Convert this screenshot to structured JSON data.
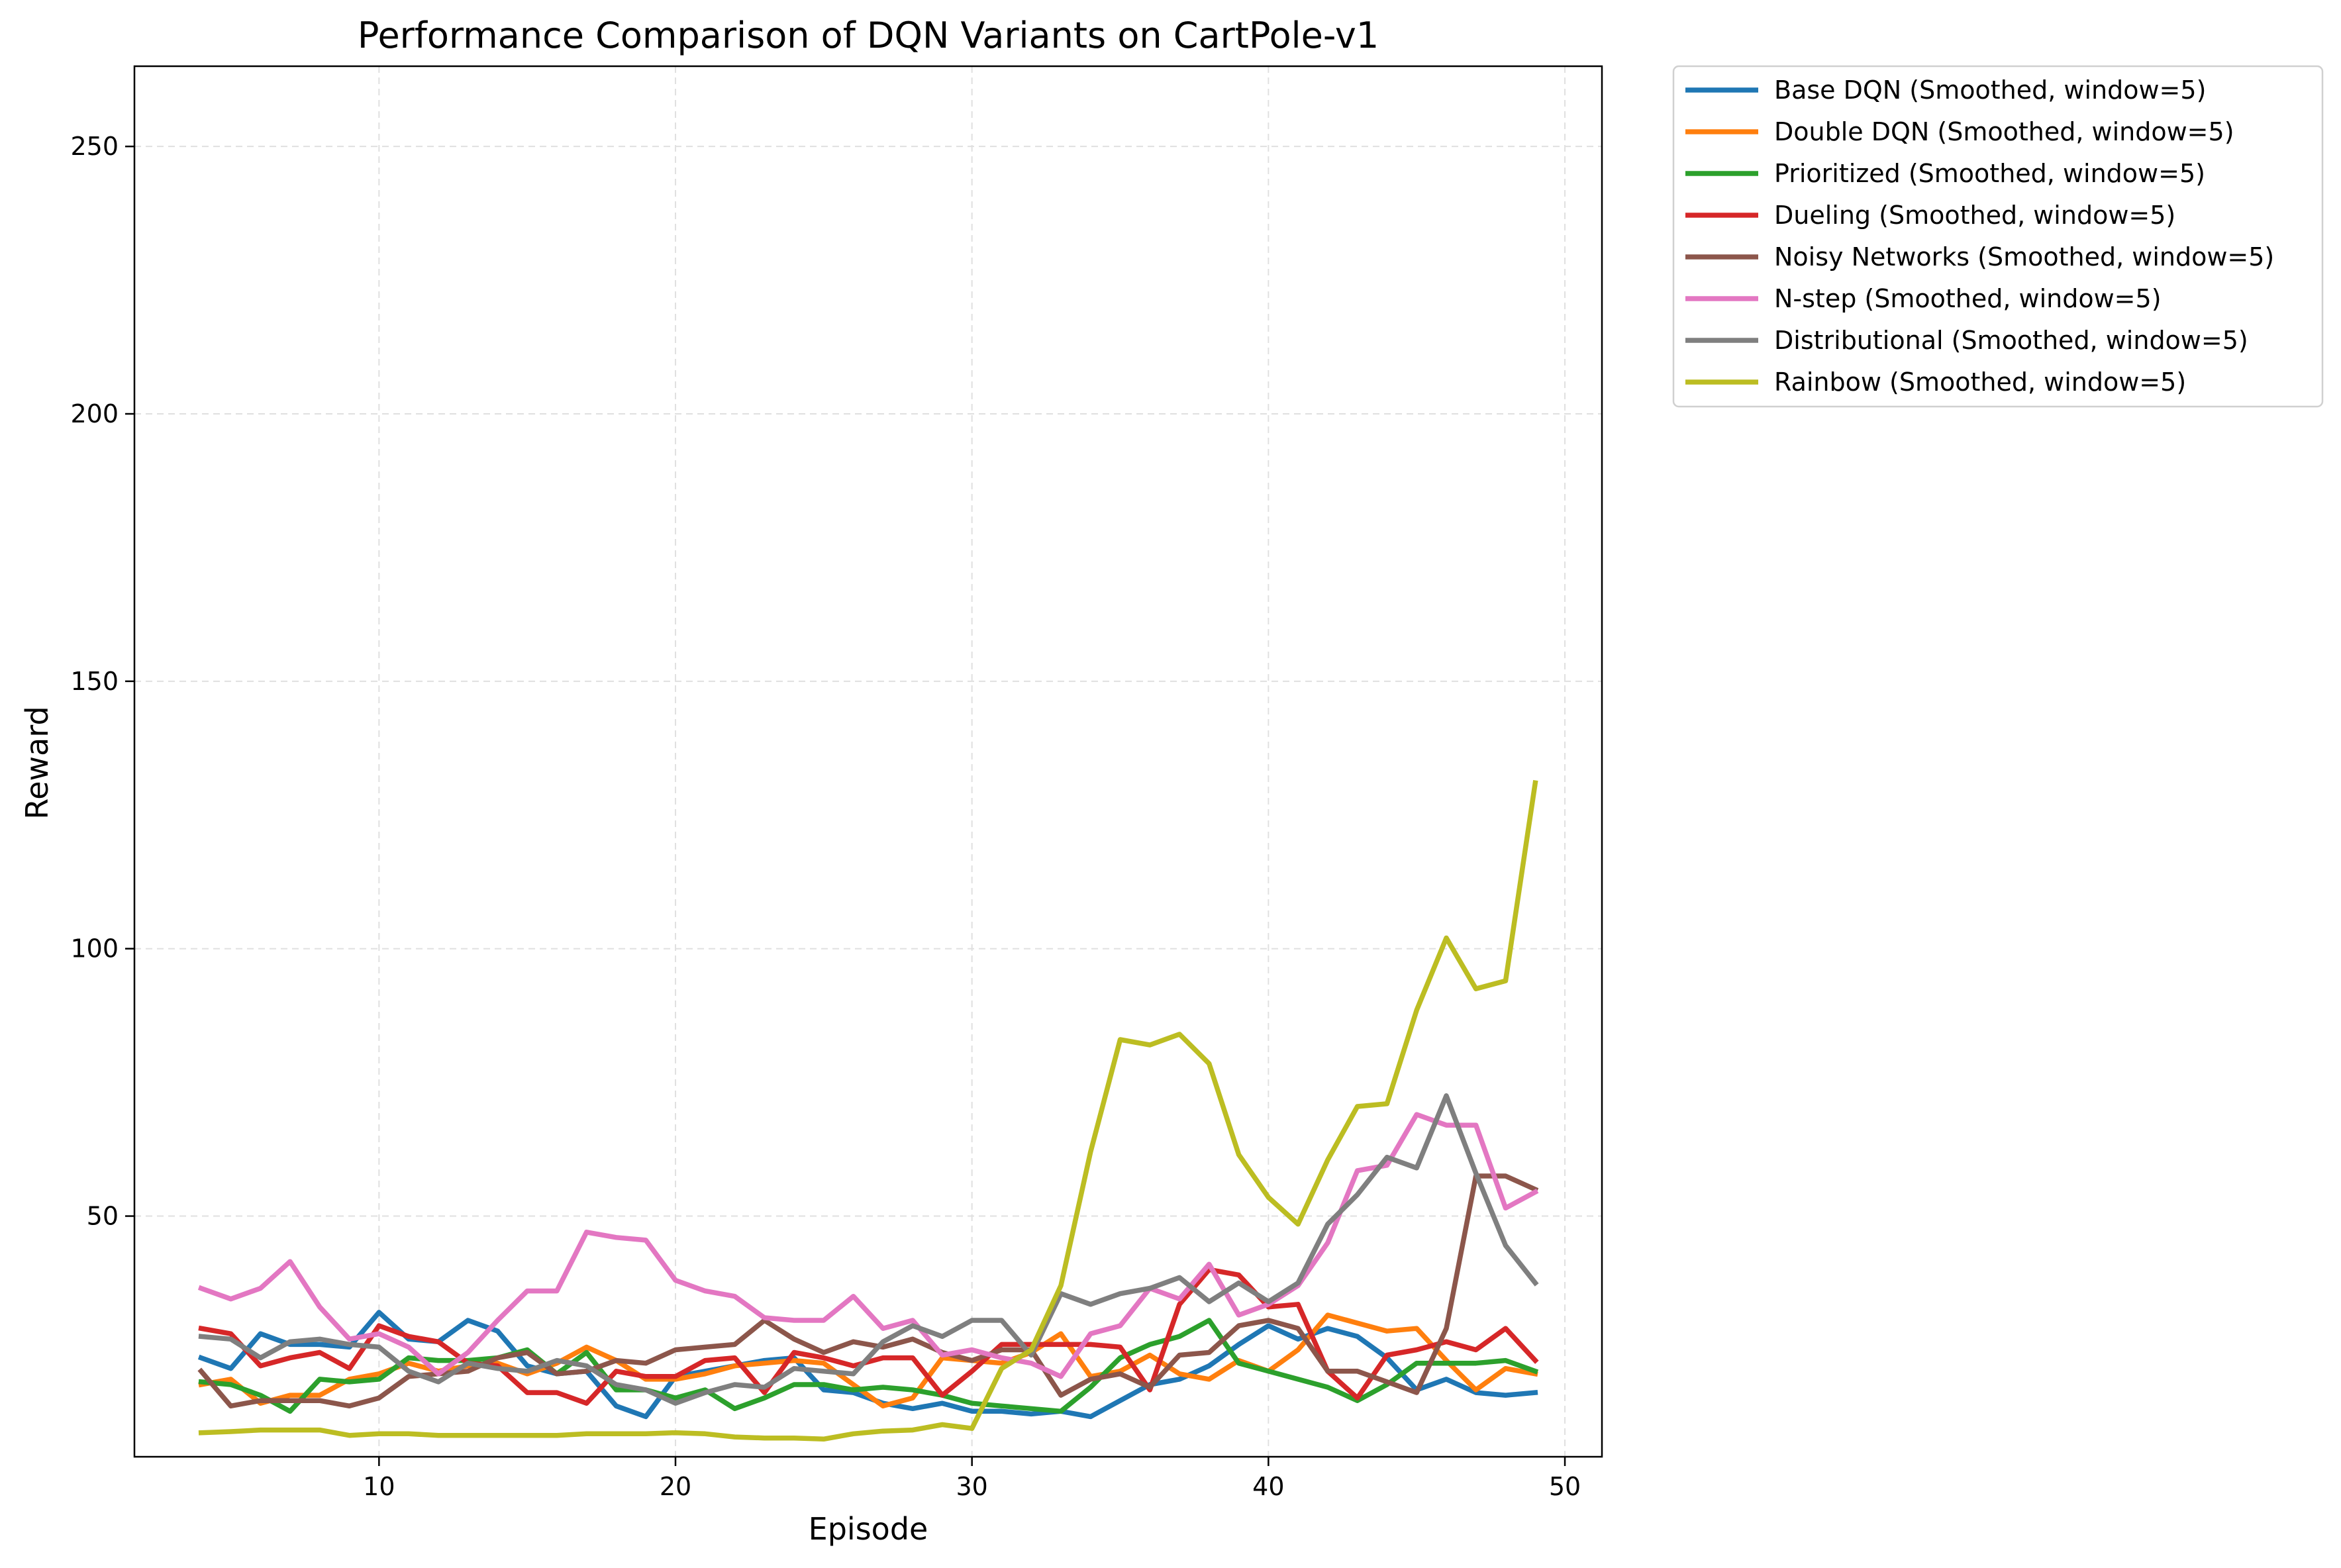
{
  "chart_data": {
    "type": "line",
    "title": "Performance Comparison of DQN Variants on CartPole-v1",
    "xlabel": "Episode",
    "ylabel": "Reward",
    "xlim": [
      1.75,
      51.25
    ],
    "ylim": [
      5,
      265
    ],
    "xticks": [
      10,
      20,
      30,
      40,
      50
    ],
    "yticks": [
      50,
      100,
      150,
      200,
      250
    ],
    "grid": true,
    "legend_position": "outside-top-right",
    "x": [
      4,
      5,
      6,
      7,
      8,
      9,
      10,
      11,
      12,
      13,
      14,
      15,
      16,
      17,
      18,
      19,
      20,
      21,
      22,
      23,
      24,
      25,
      26,
      27,
      28,
      29,
      30,
      31,
      32,
      33,
      34,
      35,
      36,
      37,
      38,
      39,
      40,
      41,
      42,
      43,
      44,
      45,
      46,
      47,
      48,
      49
    ],
    "series": [
      {
        "name": "Base DQN (Smoothed, window=5)",
        "color": "#1f77b4",
        "values": [
          23.5,
          21.5,
          28,
          26,
          26,
          25.5,
          32,
          27,
          26.5,
          30.5,
          28.5,
          22,
          20.5,
          21,
          14.5,
          12.5,
          20,
          21,
          22,
          23,
          23.5,
          17.5,
          17,
          15,
          14,
          15,
          13.5,
          13.5,
          13,
          13.5,
          12.5,
          15.5,
          18.5,
          19.5,
          22,
          26,
          29.5,
          27,
          29,
          27.5,
          23.5,
          17.5,
          19.5,
          17,
          16.5,
          17
        ]
      },
      {
        "name": "Double DQN (Smoothed, window=5)",
        "color": "#ff7f0e",
        "values": [
          18.5,
          19.5,
          15,
          16.5,
          16.5,
          19.5,
          20.5,
          22.5,
          21,
          22,
          22.5,
          20.5,
          22.5,
          25.5,
          23,
          19.5,
          19.5,
          20.5,
          22,
          22.5,
          23,
          22.5,
          18.5,
          14.5,
          16,
          23.5,
          23,
          22.5,
          24.5,
          28,
          20,
          21,
          24,
          20.5,
          19.5,
          23,
          21,
          25,
          31.5,
          30,
          28.5,
          29,
          23,
          17.5,
          21.5,
          20.5
        ]
      },
      {
        "name": "Prioritized (Smoothed, window=5)",
        "color": "#2ca02c",
        "values": [
          19,
          18.5,
          16.5,
          13.5,
          19.5,
          19,
          19.5,
          23.5,
          23,
          23,
          23.5,
          25,
          20.5,
          24.5,
          17.5,
          17.5,
          16,
          17.5,
          14,
          16,
          18.5,
          18.5,
          17.5,
          18,
          17.5,
          16.5,
          15,
          14.5,
          14,
          13.5,
          18,
          23.5,
          26,
          27.5,
          30.5,
          22.5,
          21,
          19.5,
          18,
          15.5,
          18.5,
          22.5,
          22.5,
          22.5,
          23,
          21
        ]
      },
      {
        "name": "Dueling (Smoothed, window=5)",
        "color": "#d62728",
        "values": [
          29,
          28,
          22,
          23.5,
          24.5,
          21.5,
          29.5,
          27.5,
          26.5,
          22.5,
          22,
          17,
          17,
          15,
          21,
          20,
          20,
          23,
          23.5,
          17,
          24.5,
          23.5,
          22,
          23.5,
          23.5,
          16.5,
          21,
          26,
          26,
          26,
          26,
          25.5,
          17.5,
          33.5,
          40,
          39,
          33,
          33.5,
          21,
          16,
          24,
          25,
          26.5,
          25,
          29,
          23
        ]
      },
      {
        "name": "Noisy Networks (Smoothed, window=5)",
        "color": "#8c564b",
        "values": [
          21,
          14.5,
          15.5,
          15.5,
          15.5,
          14.5,
          16,
          20,
          20.5,
          21,
          23.5,
          24.5,
          20.5,
          21,
          23,
          22.5,
          25,
          25.5,
          26,
          30.5,
          27,
          24.5,
          26.5,
          25.5,
          27,
          24.5,
          23,
          25,
          25,
          16.5,
          19.5,
          20.5,
          18,
          24,
          24.5,
          29.5,
          30.5,
          29,
          21,
          21,
          19,
          17,
          29,
          57.5,
          57.5,
          55
        ]
      },
      {
        "name": "N-step (Smoothed, window=5)",
        "color": "#e377c2",
        "values": [
          36.5,
          34.5,
          36.5,
          41.5,
          33,
          27,
          28,
          25.5,
          20.5,
          24.5,
          30.5,
          36,
          36,
          47,
          46,
          45.5,
          38,
          36,
          35,
          31,
          30.5,
          30.5,
          35,
          29,
          30.5,
          24,
          25,
          23.5,
          22.5,
          20,
          28,
          29.5,
          36.5,
          34.5,
          41,
          31.5,
          33.5,
          37,
          45,
          58.5,
          59.5,
          69,
          67,
          67,
          51.5,
          54.5
        ]
      },
      {
        "name": "Distributional (Smoothed, window=5)",
        "color": "#7f7f7f",
        "values": [
          27.5,
          27,
          23.5,
          26.5,
          27,
          26,
          25.5,
          21,
          19,
          22.5,
          21.5,
          21,
          23,
          22,
          18.5,
          17.5,
          15,
          17,
          18.5,
          18,
          21.5,
          21,
          20.5,
          26.5,
          29.5,
          27.5,
          30.5,
          30.5,
          24,
          35.5,
          33.5,
          35.5,
          36.5,
          38.5,
          34,
          37.5,
          34,
          37.5,
          48.5,
          54,
          61,
          59,
          72.5,
          58,
          44.5,
          37.5
        ]
      },
      {
        "name": "Rainbow (Smoothed, window=5)",
        "color": "#bcbd22",
        "values": [
          9.5,
          9.7,
          10,
          10,
          10,
          9,
          9.3,
          9.3,
          9,
          9,
          9,
          9,
          9,
          9.3,
          9.3,
          9.3,
          9.5,
          9.3,
          8.7,
          8.5,
          8.5,
          8.3,
          9.3,
          9.8,
          10,
          11,
          10.3,
          21.5,
          25,
          37,
          62,
          83,
          82,
          84,
          78.5,
          61.5,
          53.5,
          48.5,
          60.5,
          70.5,
          71,
          88.5,
          102,
          92.5,
          94,
          131
        ]
      }
    ]
  }
}
